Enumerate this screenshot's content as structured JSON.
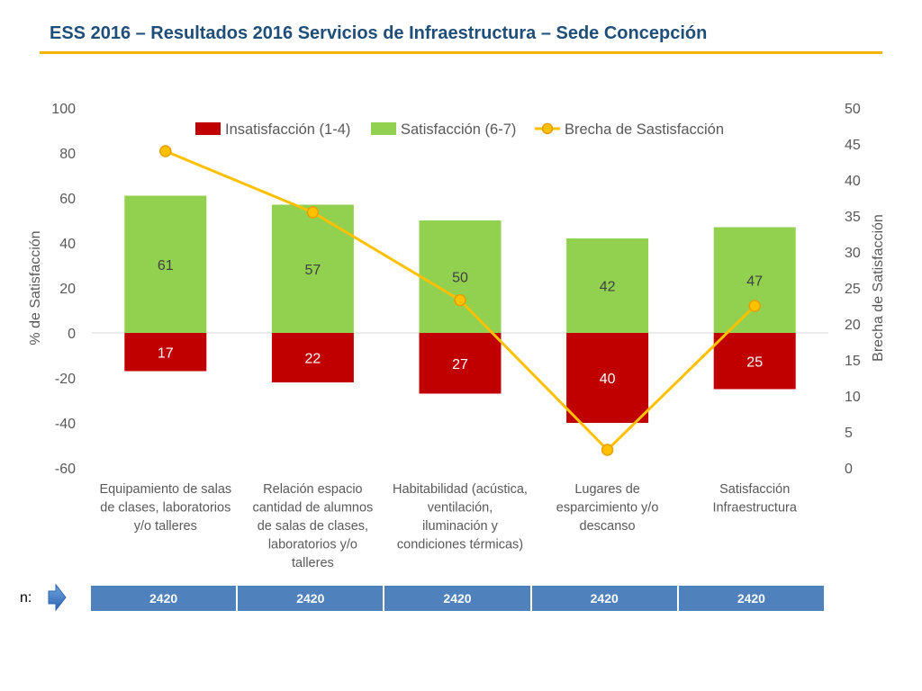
{
  "title": "ESS 2016 – Resultados 2016 Servicios de Infraestructura – Sede Concepción",
  "n_label": "n:",
  "n_values": [
    "2420",
    "2420",
    "2420",
    "2420",
    "2420"
  ],
  "colors": {
    "insatisfaccion": "#C00000",
    "satisfaccion": "#92D050",
    "brecha": "#FFC000",
    "brecha_marker_edge": "#E6A000",
    "n_table": "#4F81BD",
    "title": "#1F4E79",
    "rule": "#F2B600",
    "axis_text": "#595959"
  },
  "chart_data": {
    "type": "bar+line",
    "categories": [
      [
        "Equipamiento de salas",
        "de clases, laboratorios",
        "y/o talleres"
      ],
      [
        "Relación espacio",
        "cantidad de alumnos",
        "de salas de clases,",
        "laboratorios y/o",
        "talleres"
      ],
      [
        "Habitabilidad (acústica,",
        "ventilación,",
        "iluminación y",
        "condiciones térmicas)"
      ],
      [
        "Lugares de",
        "esparcimiento y/o",
        "descanso"
      ],
      [
        "Satisfacción",
        "Infraestructura"
      ]
    ],
    "series": [
      {
        "name": "Insatisfacción (1-4)",
        "type": "bar",
        "axis": "left",
        "values": [
          -17,
          -22,
          -27,
          -40,
          -25
        ],
        "labels": [
          "17",
          "22",
          "27",
          "40",
          "25"
        ]
      },
      {
        "name": "Satisfacción (6-7)",
        "type": "bar",
        "axis": "left",
        "values": [
          61,
          57,
          50,
          42,
          47
        ],
        "labels": [
          "61",
          "57",
          "50",
          "42",
          "47"
        ]
      },
      {
        "name": "Brecha de Sastisfacción",
        "type": "line",
        "axis": "right",
        "values": [
          44,
          35.5,
          23.3,
          2.5,
          22.5
        ]
      }
    ],
    "ylabel": "% de Satisfacción",
    "y2label": "Brecha de Satisfacción",
    "ylim": [
      -60,
      100
    ],
    "y2lim": [
      0,
      50
    ],
    "yticks": [
      "-60",
      "-40",
      "-20",
      "0",
      "20",
      "40",
      "60",
      "80",
      "100"
    ],
    "y2ticks": [
      "0",
      "5",
      "10",
      "15",
      "20",
      "25",
      "30",
      "35",
      "40",
      "45",
      "50"
    ],
    "legend_position": "top"
  }
}
